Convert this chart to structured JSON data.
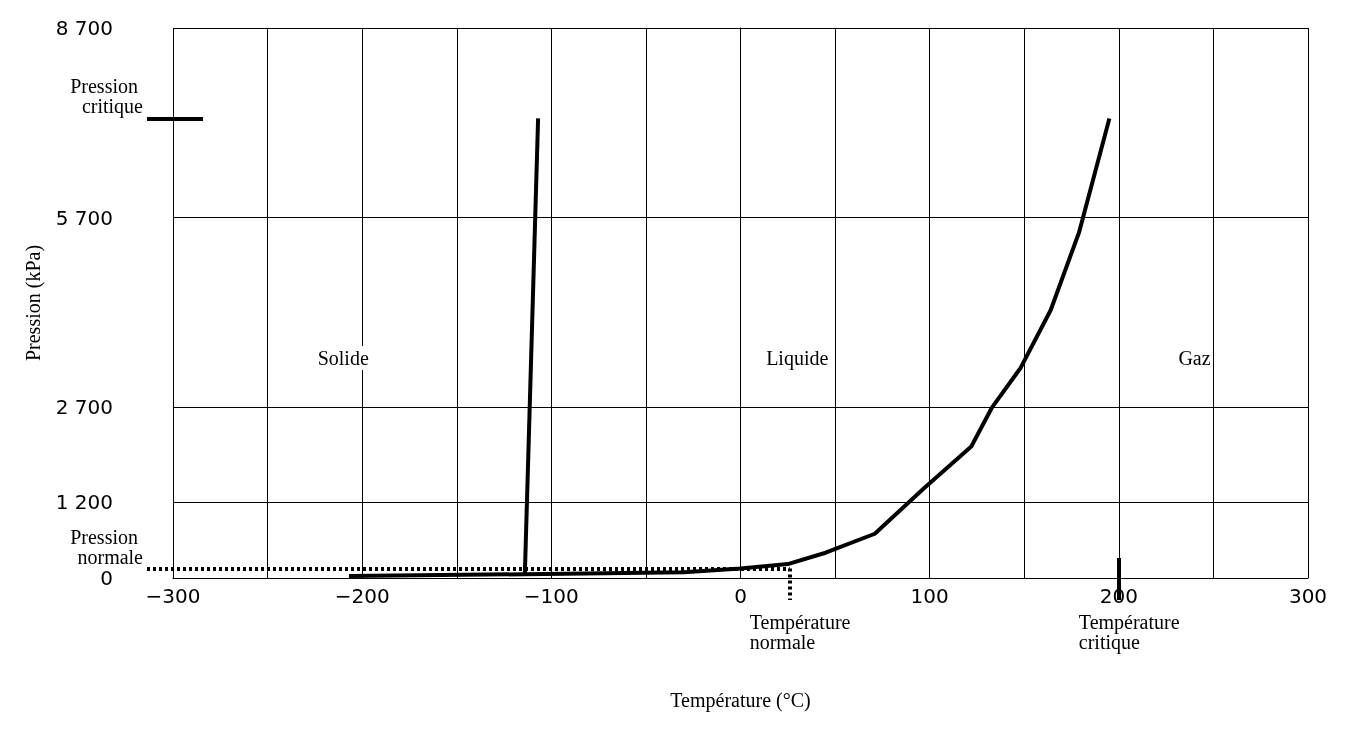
{
  "chart_data": {
    "type": "line",
    "xlabel": "Température (°C)",
    "ylabel": "Pression (kPa)",
    "xlim": [
      -300,
      300
    ],
    "xticks": [
      {
        "value": -300,
        "label": "−300"
      },
      {
        "value": -250,
        "label": null
      },
      {
        "value": -200,
        "label": "−200"
      },
      {
        "value": -150,
        "label": null
      },
      {
        "value": -100,
        "label": "−100"
      },
      {
        "value": -50,
        "label": null
      },
      0,
      {
        "value": 50,
        "label": null
      },
      100,
      {
        "value": 150,
        "label": null
      },
      200,
      {
        "value": 250,
        "label": null
      },
      300
    ],
    "ylim": [
      0,
      8700
    ],
    "yticks": [
      0,
      {
        "value": 1200,
        "label": "1 200"
      },
      {
        "value": 2700,
        "label": "2 700"
      },
      {
        "value": 5700,
        "label": "5 700"
      },
      {
        "value": 8700,
        "label": "8 700"
      }
    ],
    "grid": true,
    "marker": "none",
    "series": [
      {
        "color": "#000000",
        "x": [
          -114,
          -107
        ],
        "values": [
          60,
          7270
        ]
      },
      {
        "color": "#000000",
        "x": [
          -207,
          -114,
          -30,
          0,
          25,
          45,
          71,
          97,
          122,
          133,
          148,
          164,
          179,
          195
        ],
        "values": [
          30,
          60,
          90,
          150,
          220,
          400,
          700,
          1420,
          2080,
          2700,
          3320,
          4240,
          5470,
          7270
        ]
      }
    ],
    "ref_lines": [
      {
        "axis": "y",
        "value": 7270,
        "label": "Pression critique"
      },
      {
        "axis": "y",
        "value": 150,
        "label": "Pression normale",
        "line_style": "dotted"
      },
      {
        "axis": "x",
        "value": 26,
        "label": "Température normale",
        "line_style": "dotted"
      },
      {
        "axis": "x",
        "value": 200,
        "label": "Température critique"
      }
    ],
    "annotations": [
      "Solide",
      "Liquide",
      "Gaz"
    ]
  }
}
